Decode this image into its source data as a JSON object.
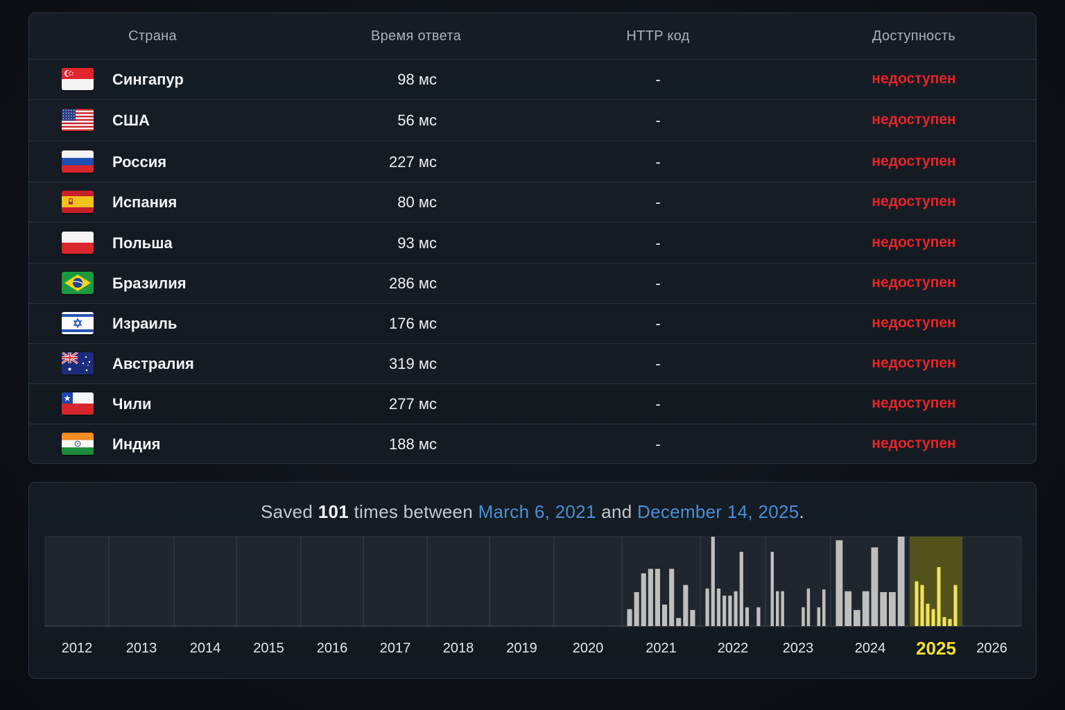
{
  "table": {
    "headers": {
      "country": "Страна",
      "response_time": "Время ответа",
      "http_code": "HTTP код",
      "availability": "Доступность"
    },
    "rows": [
      {
        "flag": "flag-singapore-icon",
        "country": "Сингапур",
        "time": "98 мс",
        "code": "-",
        "status": "недоступен"
      },
      {
        "flag": "flag-usa-icon",
        "country": "США",
        "time": "56 мс",
        "code": "-",
        "status": "недоступен"
      },
      {
        "flag": "flag-russia-icon",
        "country": "Россия",
        "time": "227 мс",
        "code": "-",
        "status": "недоступен"
      },
      {
        "flag": "flag-spain-icon",
        "country": "Испания",
        "time": "80 мс",
        "code": "-",
        "status": "недоступен"
      },
      {
        "flag": "flag-poland-icon",
        "country": "Польша",
        "time": "93 мс",
        "code": "-",
        "status": "недоступен"
      },
      {
        "flag": "flag-brazil-icon",
        "country": "Бразилия",
        "time": "286 мс",
        "code": "-",
        "status": "недоступен"
      },
      {
        "flag": "flag-israel-icon",
        "country": "Израиль",
        "time": "176 мс",
        "code": "-",
        "status": "недоступен"
      },
      {
        "flag": "flag-australia-icon",
        "country": "Австралия",
        "time": "319 мс",
        "code": "-",
        "status": "недоступен"
      },
      {
        "flag": "flag-chile-icon",
        "country": "Чили",
        "time": "277 мс",
        "code": "-",
        "status": "недоступен"
      },
      {
        "flag": "flag-india-icon",
        "country": "Индия",
        "time": "188 мс",
        "code": "-",
        "status": "недоступен"
      }
    ],
    "status_color": "#e8242a"
  },
  "summary": {
    "prefix": "Saved",
    "count": "101",
    "middle": "times between",
    "start_date": "March 6, 2021",
    "and": "and",
    "end_date": "December 14, 2025",
    "suffix": "."
  },
  "chart_data": {
    "type": "bar",
    "title": "",
    "years": [
      "2012",
      "2013",
      "2014",
      "2015",
      "2016",
      "2017",
      "2018",
      "2019",
      "2020",
      "2021",
      "2022",
      "2023",
      "2024",
      "2025",
      "2026"
    ],
    "highlight_year": "2025",
    "series": [
      {
        "year": "2021",
        "values": [
          0.19,
          0.38,
          0.59,
          0.64,
          0.64,
          0.24,
          0.64,
          0.09,
          0.46,
          0.18
        ]
      },
      {
        "year": "2022",
        "values": [
          0.42,
          1.0,
          0.42,
          0.34,
          0.34,
          0.39,
          0.83,
          0.21,
          0.0,
          0.21
        ]
      },
      {
        "year": "2023",
        "values": [
          0.83,
          0.39,
          0.39,
          0.0,
          0.0,
          0.0,
          0.21,
          0.42,
          0.0,
          0.21,
          0.41
        ]
      },
      {
        "year": "2024",
        "values": [
          0.96,
          0.39,
          0.18,
          0.39,
          0.88,
          0.38,
          0.38,
          1.0
        ]
      },
      {
        "year": "2025",
        "values": [
          0.5,
          0.46,
          0.25,
          0.19,
          0.66,
          0.1,
          0.08,
          0.46
        ]
      }
    ],
    "colors": {
      "bar": "#bfbfbf",
      "highlight_bar": "#f2e45c",
      "highlight_bg": "#5e5a1a",
      "plot_bg": "#20262d",
      "grid": "#394049",
      "axis": "#e6e9ec",
      "highlight_label": "#f4e12b"
    }
  }
}
